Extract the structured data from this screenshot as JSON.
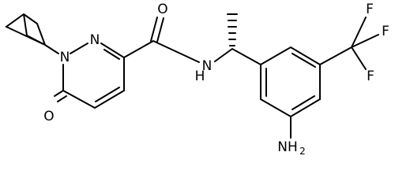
{
  "atoms": {
    "ring_n1": "N",
    "ring_n2": "N",
    "ring_o": "O",
    "amide_o": "O",
    "amide_n": "N",
    "amide_h": "H",
    "amine_n": "NH",
    "amine_sub": "2",
    "f1": "F",
    "f2": "F",
    "f3": "F"
  }
}
